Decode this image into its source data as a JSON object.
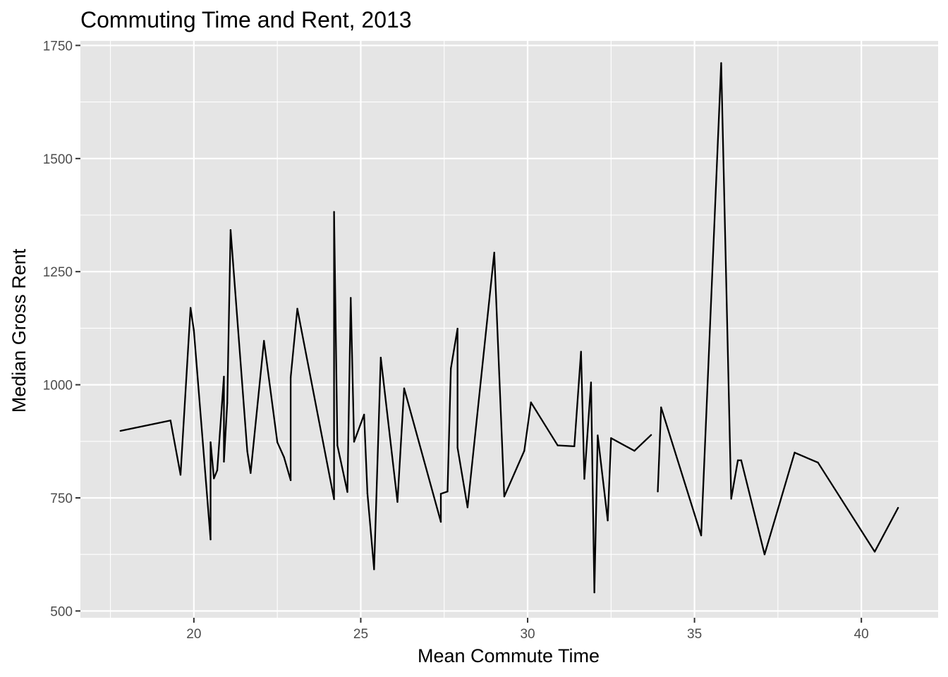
{
  "chart_data": {
    "type": "line",
    "title": "Commuting Time and Rent, 2013",
    "xlabel": "Mean Commute Time",
    "ylabel": "Median Gross Rent",
    "xlim": [
      16.6,
      42.3
    ],
    "ylim": [
      485,
      1760
    ],
    "x_ticks": [
      20,
      25,
      30,
      35,
      40
    ],
    "y_ticks": [
      500,
      750,
      1000,
      1250,
      1500,
      1750
    ],
    "x_tick_labels": [
      "20",
      "25",
      "30",
      "35",
      "40"
    ],
    "y_tick_labels": [
      "500",
      "750",
      "1000",
      "1250",
      "1500",
      "1750"
    ],
    "grid": true,
    "panel_background": "#e5e5e5",
    "grid_color": "#ffffff",
    "line_color": "#000000",
    "series": [
      {
        "segments": [
          [
            [
              17.8,
              898
            ],
            [
              19.3,
              921
            ],
            [
              19.6,
              801
            ],
            [
              19.9,
              1170
            ],
            [
              20.0,
              1120
            ],
            [
              20.5,
              658
            ],
            [
              20.5,
              873
            ],
            [
              20.6,
              793
            ],
            [
              20.7,
              811
            ],
            [
              20.9,
              1018
            ],
            [
              20.9,
              830
            ],
            [
              21.0,
              960
            ],
            [
              21.1,
              1342
            ],
            [
              21.6,
              853
            ],
            [
              21.7,
              805
            ],
            [
              22.1,
              1097
            ],
            [
              22.5,
              873
            ],
            [
              22.7,
              840
            ],
            [
              22.9,
              789
            ],
            [
              22.9,
              1016
            ],
            [
              23.1,
              1168
            ],
            [
              24.2,
              747
            ],
            [
              24.2,
              1382
            ],
            [
              24.3,
              866
            ],
            [
              24.6,
              763
            ],
            [
              24.7,
              1192
            ],
            [
              24.8,
              874
            ],
            [
              25.1,
              934
            ],
            [
              25.2,
              760
            ],
            [
              25.4,
              592
            ],
            [
              25.6,
              1060
            ],
            [
              26.1,
              741
            ],
            [
              26.3,
              992
            ],
            [
              27.4,
              697
            ],
            [
              27.4,
              759
            ],
            [
              27.6,
              764
            ],
            [
              27.7,
              1036
            ],
            [
              27.9,
              1124
            ],
            [
              27.9,
              861
            ],
            [
              28.2,
              729
            ],
            [
              29.0,
              1292
            ],
            [
              29.3,
              753
            ],
            [
              29.9,
              854
            ],
            [
              30.1,
              961
            ],
            [
              30.9,
              866
            ],
            [
              31.4,
              864
            ],
            [
              31.6,
              1073
            ],
            [
              31.7,
              792
            ],
            [
              31.9,
              1005
            ],
            [
              32.0,
              541
            ],
            [
              32.1,
              888
            ],
            [
              32.4,
              700
            ],
            [
              32.5,
              882
            ],
            [
              33.2,
              854
            ],
            [
              33.7,
              889
            ]
          ],
          [
            [
              33.9,
              764
            ],
            [
              34.0,
              950
            ],
            [
              35.2,
              667
            ],
            [
              35.8,
              1711
            ],
            [
              36.1,
              748
            ],
            [
              36.3,
              833
            ],
            [
              36.4,
              833
            ],
            [
              37.1,
              625
            ],
            [
              38.0,
              850
            ],
            [
              38.7,
              828
            ],
            [
              40.4,
              631
            ],
            [
              41.1,
              728
            ]
          ]
        ]
      }
    ]
  }
}
